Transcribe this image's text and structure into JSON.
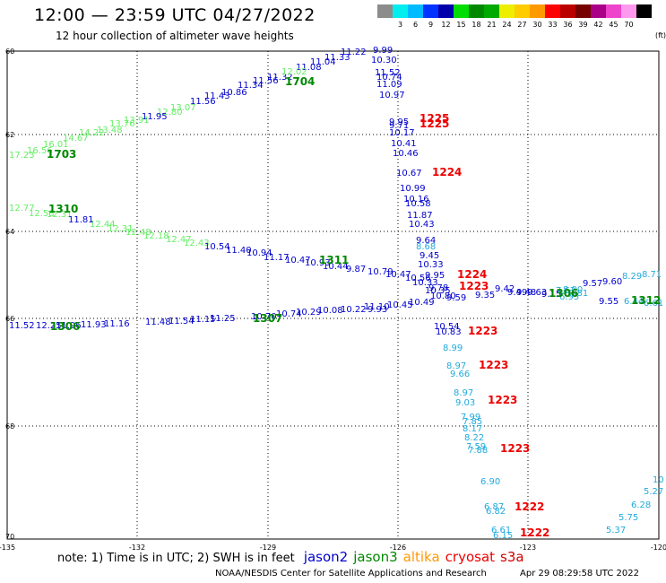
{
  "header": {
    "title": "12:00 — 23:59 UTC 04/27/2022",
    "subtitle": "12 hour collection of altimeter wave heights"
  },
  "legend": {
    "levels": [
      {
        "color": "#8c8c8c",
        "label": ""
      },
      {
        "color": "#00eeee",
        "label": "3"
      },
      {
        "color": "#00bbff",
        "label": "6"
      },
      {
        "color": "#0033ff",
        "label": "9"
      },
      {
        "color": "#0000aa",
        "label": "12"
      },
      {
        "color": "#00dd00",
        "label": "15"
      },
      {
        "color": "#008800",
        "label": "18"
      },
      {
        "color": "#00aa00",
        "label": "21"
      },
      {
        "color": "#eeee00",
        "label": "24"
      },
      {
        "color": "#ffcc00",
        "label": "27"
      },
      {
        "color": "#ff9900",
        "label": "30"
      },
      {
        "color": "#ff0000",
        "label": "33"
      },
      {
        "color": "#bb0000",
        "label": "36"
      },
      {
        "color": "#770000",
        "label": "39"
      },
      {
        "color": "#aa0088",
        "label": "42"
      },
      {
        "color": "#ee44cc",
        "label": "45"
      },
      {
        "color": "#ff99ee",
        "label": "70"
      },
      {
        "color": "#000000",
        "label": ""
      }
    ],
    "unit": "(ft)"
  },
  "axes": {
    "lon_ticks": [
      "-135",
      "-132",
      "-129",
      "-126",
      "-123",
      "-120"
    ],
    "lat_ticks": [
      "60",
      "62",
      "64",
      "66",
      "68",
      "70"
    ]
  },
  "colors": {
    "jason2": "#0000cc",
    "jason3": "#008800",
    "altika": "#ff9900",
    "cryosat": "#ee0000",
    "s3a": "#cc0000",
    "light_green": "#66ee66",
    "cyan": "#22aadd",
    "red": "#ee0000",
    "navy": "#000099"
  },
  "tracks": [
    {
      "color": "#66ee66",
      "points": [
        [
          "17.23",
          10,
          176
        ],
        [
          "16.56",
          30,
          171
        ],
        [
          "16.01",
          48,
          164
        ],
        [
          "14.67",
          70,
          157
        ],
        [
          "14.22",
          88,
          151
        ],
        [
          "13.48",
          108,
          148
        ],
        [
          "13.76",
          122,
          141
        ],
        [
          "13.91",
          138,
          137
        ],
        [
          "13.07",
          190,
          123
        ],
        [
          "12.80",
          175,
          128
        ]
      ]
    },
    {
      "color": "#0000cc",
      "points": [
        [
          "11.95",
          158,
          133
        ],
        [
          "11.56",
          212,
          116
        ],
        [
          "11.43",
          228,
          110
        ],
        [
          "10.86",
          247,
          106
        ],
        [
          "11.34",
          265,
          98
        ],
        [
          "11.56",
          282,
          93
        ],
        [
          "11.32",
          298,
          89
        ],
        [
          "11.08",
          330,
          78
        ],
        [
          "11.04",
          346,
          72
        ],
        [
          "11.33",
          362,
          67
        ],
        [
          "11.22",
          380,
          61
        ]
      ]
    },
    {
      "color": "#66ee66",
      "points": [
        [
          "12.02",
          314,
          83
        ]
      ]
    },
    {
      "color": "#0000cc",
      "points": [
        [
          "9.99",
          416,
          59
        ],
        [
          "10.30",
          414,
          70
        ],
        [
          "11.52",
          418,
          84
        ],
        [
          "10.74",
          420,
          89
        ],
        [
          "11.09",
          420,
          97
        ],
        [
          "10.97",
          423,
          109
        ]
      ]
    },
    {
      "color": "#0000cc",
      "points": [
        [
          "9.95",
          434,
          139
        ],
        [
          "9.71",
          434,
          143
        ],
        [
          "10.17",
          434,
          151
        ],
        [
          "10.41",
          436,
          163
        ],
        [
          "10.46",
          438,
          174
        ],
        [
          "10.67",
          442,
          196
        ],
        [
          "10.99",
          446,
          213
        ],
        [
          "10.16",
          450,
          225
        ],
        [
          "10.58",
          452,
          230
        ],
        [
          "11.87",
          454,
          243
        ],
        [
          "10.43",
          456,
          253
        ]
      ]
    },
    {
      "color": "#66ee66",
      "points": [
        [
          "12.77",
          10,
          235
        ],
        [
          "12.58",
          32,
          241
        ],
        [
          "12.31",
          52,
          242
        ],
        [
          "12.44",
          100,
          253
        ],
        [
          "12.31",
          120,
          258
        ],
        [
          "12.48",
          140,
          262
        ],
        [
          "12.18",
          160,
          266
        ],
        [
          "12.47",
          185,
          270
        ],
        [
          "12.43",
          205,
          274
        ]
      ]
    },
    {
      "color": "#0000cc",
      "points": [
        [
          "11.81",
          76,
          248
        ],
        [
          "10.54",
          228,
          278
        ],
        [
          "11.40",
          252,
          282
        ],
        [
          "10.94",
          275,
          285
        ],
        [
          "11.17",
          294,
          290
        ],
        [
          "10.47",
          318,
          293
        ],
        [
          "10.93",
          340,
          296
        ],
        [
          "10.44",
          360,
          300
        ],
        [
          "9.87",
          386,
          303
        ],
        [
          "10.79",
          410,
          306
        ],
        [
          "10.47",
          430,
          309
        ],
        [
          "10.56",
          452,
          313
        ],
        [
          "10.33",
          460,
          318
        ],
        [
          "10.35",
          474,
          327
        ],
        [
          "10.80",
          480,
          333
        ],
        [
          "9.59",
          498,
          335
        ],
        [
          "9.35",
          530,
          332
        ],
        [
          "9.42",
          552,
          325
        ],
        [
          "9.49",
          566,
          329
        ],
        [
          "9.48",
          576,
          329
        ],
        [
          "9.63",
          588,
          329
        ],
        [
          "9.15",
          604,
          331
        ],
        [
          "9.57",
          650,
          319
        ],
        [
          "9.60",
          672,
          317
        ],
        [
          "9.55",
          668,
          339
        ]
      ]
    },
    {
      "color": "#0000cc",
      "points": [
        [
          "9.64",
          464,
          271
        ],
        [
          "9.45",
          468,
          288
        ],
        [
          "10.33",
          466,
          298
        ],
        [
          "9.95",
          474,
          310
        ],
        [
          "9.78",
          478,
          324
        ],
        [
          "10.49",
          456,
          340
        ],
        [
          "10.45",
          432,
          343
        ],
        [
          "11.10",
          406,
          345
        ],
        [
          "10.22",
          380,
          348
        ],
        [
          "10.08",
          354,
          349
        ],
        [
          "10.29",
          330,
          351
        ],
        [
          "10.74",
          308,
          353
        ],
        [
          "10.70",
          280,
          356
        ],
        [
          "11.25",
          234,
          358
        ],
        [
          "11.15",
          212,
          359
        ],
        [
          "11.54",
          188,
          361
        ],
        [
          "11.48",
          162,
          362
        ],
        [
          "11.16",
          116,
          364
        ],
        [
          "11.93",
          90,
          365
        ],
        [
          "11.96",
          62,
          366
        ],
        [
          "12.25",
          40,
          366
        ],
        [
          "11.52",
          10,
          366
        ],
        [
          "9.93",
          410,
          348
        ]
      ]
    },
    {
      "color": "#22aadd",
      "points": [
        [
          "8.68",
          464,
          278
        ],
        [
          "8.99",
          494,
          391
        ],
        [
          "8.97",
          498,
          411
        ],
        [
          "9.66",
          502,
          420
        ],
        [
          "8.97",
          506,
          441
        ],
        [
          "9.03",
          508,
          452
        ],
        [
          "8.29",
          694,
          311
        ],
        [
          "8.71",
          716,
          309
        ],
        [
          "6.95",
          624,
          334
        ],
        [
          "6.44",
          696,
          339
        ],
        [
          "6.61",
          718,
          341
        ],
        [
          "7.62",
          620,
          327
        ],
        [
          "8.00",
          628,
          326
        ],
        [
          "7.81",
          634,
          330
        ]
      ]
    },
    {
      "color": "#0000cc",
      "points": [
        [
          "10.54",
          484,
          367
        ],
        [
          "10.83",
          486,
          373
        ]
      ]
    },
    {
      "color": "#22aadd",
      "points": [
        [
          "7.99",
          514,
          468
        ],
        [
          "7.85",
          516,
          473
        ],
        [
          "8.17",
          516,
          481
        ],
        [
          "8.22",
          518,
          491
        ],
        [
          "7.59",
          520,
          501
        ],
        [
          "7.88",
          522,
          505
        ],
        [
          "6.90",
          536,
          540
        ],
        [
          "6.87",
          540,
          568
        ],
        [
          "6.82",
          542,
          573
        ],
        [
          "6.61",
          548,
          594
        ],
        [
          "6.15",
          550,
          600
        ],
        [
          "5.37",
          676,
          594
        ],
        [
          "5.75",
          690,
          580
        ],
        [
          "6.28",
          704,
          566
        ],
        [
          "5.27",
          718,
          551
        ],
        [
          "10",
          728,
          538
        ]
      ]
    },
    {
      "color": "#ee0000",
      "points": [
        [
          "1225",
          468,
          136
        ],
        [
          "1225",
          468,
          142
        ],
        [
          "1224",
          482,
          196
        ],
        [
          "1224",
          510,
          310
        ],
        [
          "1223",
          512,
          323
        ],
        [
          "1223",
          522,
          373
        ],
        [
          "1223",
          534,
          411
        ],
        [
          "1223",
          544,
          450
        ],
        [
          "1223",
          558,
          504
        ],
        [
          "1222",
          574,
          569
        ],
        [
          "1222",
          580,
          598
        ]
      ]
    },
    {
      "color": "#008800",
      "points": [
        [
          "1703",
          52,
          176
        ],
        [
          "1704",
          318,
          95
        ],
        [
          "1310",
          54,
          237
        ],
        [
          "1311",
          356,
          294
        ],
        [
          "1306",
          612,
          331
        ],
        [
          "1312",
          704,
          339
        ],
        [
          "1306",
          56,
          368
        ],
        [
          "1307",
          282,
          359
        ]
      ]
    }
  ],
  "footer": {
    "note": "note:  1) Time is in UTC;  2) SWH is in feet",
    "satellites": [
      {
        "name": "jason2",
        "color": "#0000cc"
      },
      {
        "name": "jason3",
        "color": "#008800"
      },
      {
        "name": "altika",
        "color": "#ff9900"
      },
      {
        "name": "cryosat",
        "color": "#ee0000"
      },
      {
        "name": "s3a",
        "color": "#cc0000"
      }
    ],
    "credit": "NOAA/NESDIS Center for Satellite Applications and Research",
    "timestamp": "Apr 29 08:29:58 UTC 2022"
  }
}
